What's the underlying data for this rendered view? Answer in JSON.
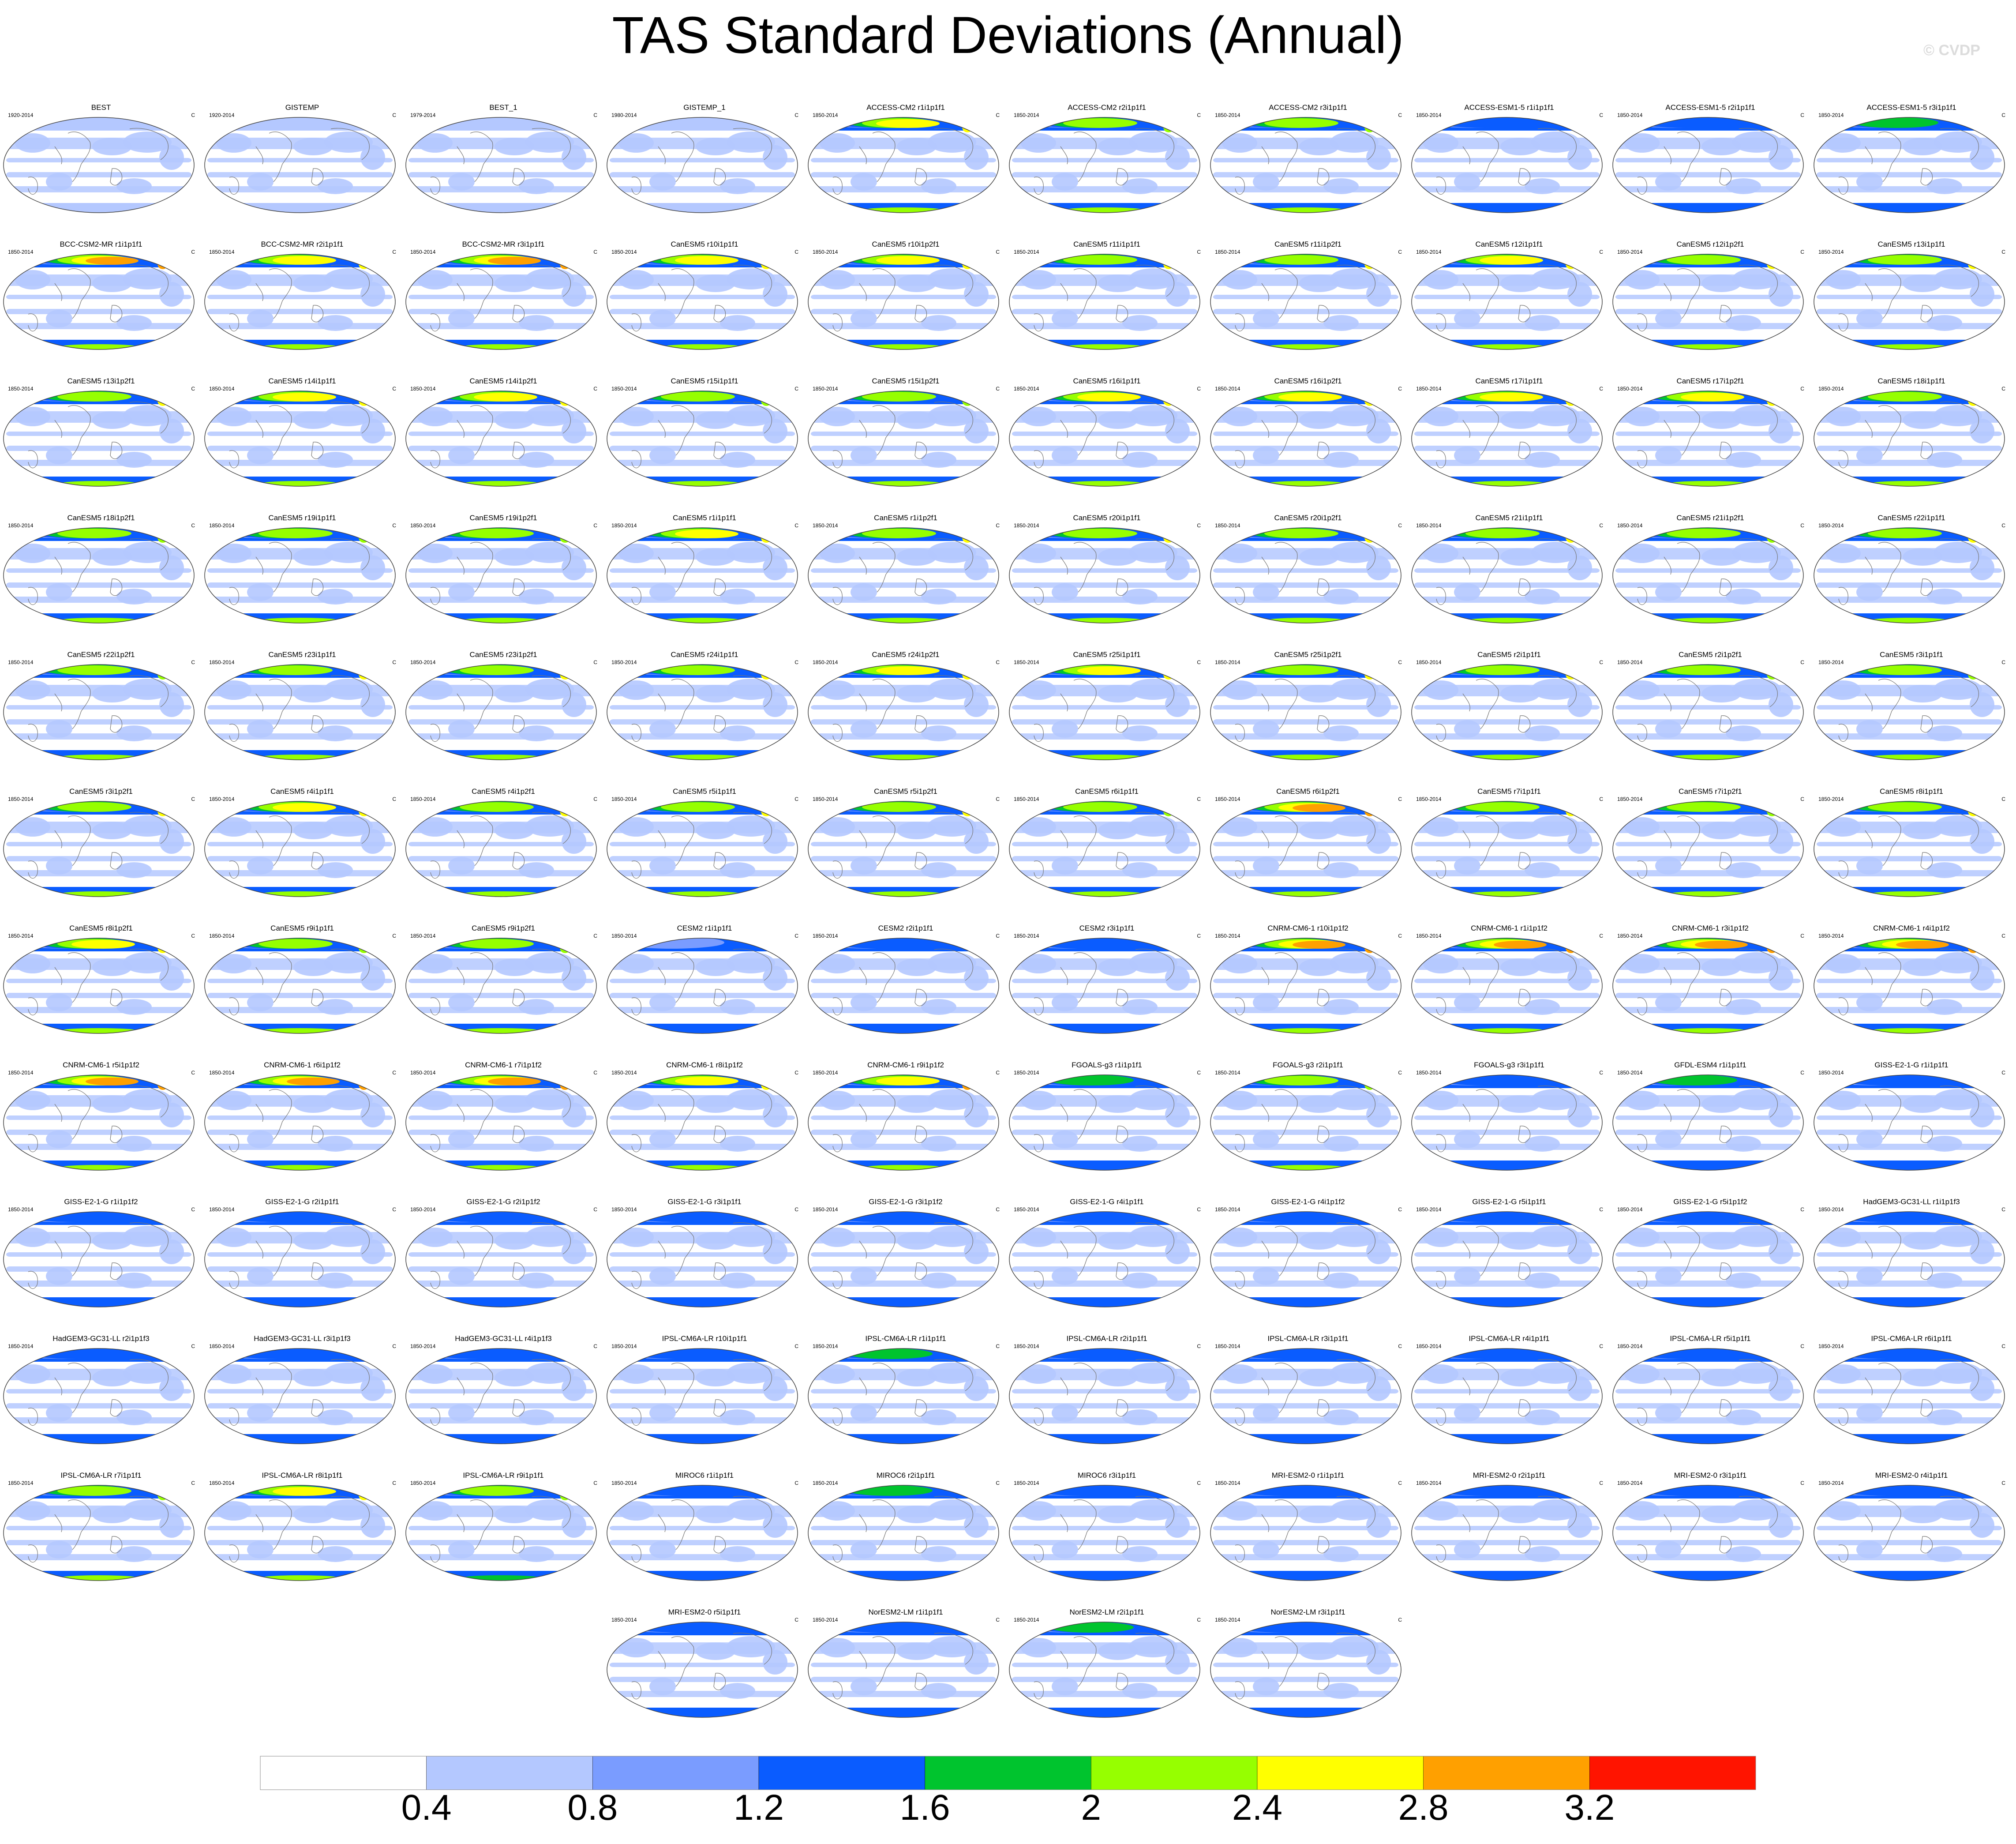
{
  "title": "TAS Standard Deviations (Annual)",
  "copyright": "© CVDP",
  "chart_data": {
    "type": "heatmap",
    "title": "TAS Standard Deviations (Annual)",
    "units": "C",
    "projection": "Robinson global map, Pacific-centered",
    "colorbar": {
      "boundaries": [
        0.4,
        0.8,
        1.2,
        1.6,
        2,
        2.4,
        2.8,
        3.2
      ],
      "tick_labels": [
        "0.4",
        "0.8",
        "1.2",
        "1.6",
        "2",
        "2.4",
        "2.8",
        "3.2"
      ],
      "colors": [
        "#ffffff",
        "#b4c8ff",
        "#7a9cff",
        "#0a5cff",
        "#00c42e",
        "#96ff00",
        "#ffff00",
        "#ffa000",
        "#ff1400"
      ]
    },
    "panels": [
      {
        "title": "BEST",
        "period": "1920-2014",
        "unit": "C",
        "level": 0.5
      },
      {
        "title": "GISTEMP",
        "period": "1920-2014",
        "unit": "C",
        "level": 0.5
      },
      {
        "title": "BEST_1",
        "period": "1979-2014",
        "unit": "C",
        "level": 0.5
      },
      {
        "title": "GISTEMP_1",
        "period": "1980-2014",
        "unit": "C",
        "level": 0.4
      },
      {
        "title": "ACCESS-CM2 r1i1p1f1",
        "period": "1850-2014",
        "unit": "C",
        "level": 2.6
      },
      {
        "title": "ACCESS-CM2 r2i1p1f1",
        "period": "1850-2014",
        "unit": "C",
        "level": 2.2
      },
      {
        "title": "ACCESS-CM2 r3i1p1f1",
        "period": "1850-2014",
        "unit": "C",
        "level": 2.3
      },
      {
        "title": "ACCESS-ESM1-5 r1i1p1f1",
        "period": "1850-2014",
        "unit": "C",
        "level": 1.6
      },
      {
        "title": "ACCESS-ESM1-5 r2i1p1f1",
        "period": "1850-2014",
        "unit": "C",
        "level": 1.6
      },
      {
        "title": "ACCESS-ESM1-5 r3i1p1f1",
        "period": "1850-2014",
        "unit": "C",
        "level": 1.7
      },
      {
        "title": "BCC-CSM2-MR r1i1p1f1",
        "period": "1850-2014",
        "unit": "C",
        "level": 2.9
      },
      {
        "title": "BCC-CSM2-MR r2i1p1f1",
        "period": "1850-2014",
        "unit": "C",
        "level": 2.6
      },
      {
        "title": "BCC-CSM2-MR r3i1p1f1",
        "period": "1850-2014",
        "unit": "C",
        "level": 3.0
      },
      {
        "title": "CanESM5 r10i1p1f1",
        "period": "1850-2014",
        "unit": "C",
        "level": 2.5
      },
      {
        "title": "CanESM5 r10i1p2f1",
        "period": "1850-2014",
        "unit": "C",
        "level": 2.7
      },
      {
        "title": "CanESM5 r11i1p1f1",
        "period": "1850-2014",
        "unit": "C",
        "level": 2.4
      },
      {
        "title": "CanESM5 r11i1p2f1",
        "period": "1850-2014",
        "unit": "C",
        "level": 2.4
      },
      {
        "title": "CanESM5 r12i1p1f1",
        "period": "1850-2014",
        "unit": "C",
        "level": 2.5
      },
      {
        "title": "CanESM5 r12i1p2f1",
        "period": "1850-2014",
        "unit": "C",
        "level": 2.4
      },
      {
        "title": "CanESM5 r13i1p1f1",
        "period": "1850-2014",
        "unit": "C",
        "level": 2.4
      },
      {
        "title": "CanESM5 r13i1p2f1",
        "period": "1850-2014",
        "unit": "C",
        "level": 2.4
      },
      {
        "title": "CanESM5 r14i1p1f1",
        "period": "1850-2014",
        "unit": "C",
        "level": 2.5
      },
      {
        "title": "CanESM5 r14i1p2f1",
        "period": "1850-2014",
        "unit": "C",
        "level": 2.5
      },
      {
        "title": "CanESM5 r15i1p1f1",
        "period": "1850-2014",
        "unit": "C",
        "level": 2.3
      },
      {
        "title": "CanESM5 r15i1p2f1",
        "period": "1850-2014",
        "unit": "C",
        "level": 2.3
      },
      {
        "title": "CanESM5 r16i1p1f1",
        "period": "1850-2014",
        "unit": "C",
        "level": 2.5
      },
      {
        "title": "CanESM5 r16i1p2f1",
        "period": "1850-2014",
        "unit": "C",
        "level": 2.5
      },
      {
        "title": "CanESM5 r17i1p1f1",
        "period": "1850-2014",
        "unit": "C",
        "level": 2.6
      },
      {
        "title": "CanESM5 r17i1p2f1",
        "period": "1850-2014",
        "unit": "C",
        "level": 2.5
      },
      {
        "title": "CanESM5 r18i1p1f1",
        "period": "1850-2014",
        "unit": "C",
        "level": 2.4
      },
      {
        "title": "CanESM5 r18i1p2f1",
        "period": "1850-2014",
        "unit": "C",
        "level": 2.3
      },
      {
        "title": "CanESM5 r19i1p1f1",
        "period": "1850-2014",
        "unit": "C",
        "level": 2.3
      },
      {
        "title": "CanESM5 r19i1p2f1",
        "period": "1850-2014",
        "unit": "C",
        "level": 2.3
      },
      {
        "title": "CanESM5 r1i1p1f1",
        "period": "1850-2014",
        "unit": "C",
        "level": 2.5
      },
      {
        "title": "CanESM5 r1i1p2f1",
        "period": "1850-2014",
        "unit": "C",
        "level": 2.4
      },
      {
        "title": "CanESM5 r20i1p1f1",
        "period": "1850-2014",
        "unit": "C",
        "level": 2.4
      },
      {
        "title": "CanESM5 r20i1p2f1",
        "period": "1850-2014",
        "unit": "C",
        "level": 2.4
      },
      {
        "title": "CanESM5 r21i1p1f1",
        "period": "1850-2014",
        "unit": "C",
        "level": 2.4
      },
      {
        "title": "CanESM5 r21i1p2f1",
        "period": "1850-2014",
        "unit": "C",
        "level": 2.3
      },
      {
        "title": "CanESM5 r22i1p1f1",
        "period": "1850-2014",
        "unit": "C",
        "level": 2.4
      },
      {
        "title": "CanESM5 r22i1p2f1",
        "period": "1850-2014",
        "unit": "C",
        "level": 2.3
      },
      {
        "title": "CanESM5 r23i1p1f1",
        "period": "1850-2014",
        "unit": "C",
        "level": 2.4
      },
      {
        "title": "CanESM5 r23i1p2f1",
        "period": "1850-2014",
        "unit": "C",
        "level": 2.4
      },
      {
        "title": "CanESM5 r24i1p1f1",
        "period": "1850-2014",
        "unit": "C",
        "level": 2.4
      },
      {
        "title": "CanESM5 r24i1p2f1",
        "period": "1850-2014",
        "unit": "C",
        "level": 2.5
      },
      {
        "title": "CanESM5 r25i1p1f1",
        "period": "1850-2014",
        "unit": "C",
        "level": 2.5
      },
      {
        "title": "CanESM5 r25i1p2f1",
        "period": "1850-2014",
        "unit": "C",
        "level": 2.4
      },
      {
        "title": "CanESM5 r2i1p1f1",
        "period": "1850-2014",
        "unit": "C",
        "level": 2.4
      },
      {
        "title": "CanESM5 r2i1p2f1",
        "period": "1850-2014",
        "unit": "C",
        "level": 2.3
      },
      {
        "title": "CanESM5 r3i1p1f1",
        "period": "1850-2014",
        "unit": "C",
        "level": 2.3
      },
      {
        "title": "CanESM5 r3i1p2f1",
        "period": "1850-2014",
        "unit": "C",
        "level": 2.4
      },
      {
        "title": "CanESM5 r4i1p1f1",
        "period": "1850-2014",
        "unit": "C",
        "level": 2.6
      },
      {
        "title": "CanESM5 r4i1p2f1",
        "period": "1850-2014",
        "unit": "C",
        "level": 2.4
      },
      {
        "title": "CanESM5 r5i1p1f1",
        "period": "1850-2014",
        "unit": "C",
        "level": 2.4
      },
      {
        "title": "CanESM5 r5i1p2f1",
        "period": "1850-2014",
        "unit": "C",
        "level": 2.4
      },
      {
        "title": "CanESM5 r6i1p1f1",
        "period": "1850-2014",
        "unit": "C",
        "level": 2.3
      },
      {
        "title": "CanESM5 r6i1p2f1",
        "period": "1850-2014",
        "unit": "C",
        "level": 3.0
      },
      {
        "title": "CanESM5 r7i1p1f1",
        "period": "1850-2014",
        "unit": "C",
        "level": 2.4
      },
      {
        "title": "CanESM5 r7i1p2f1",
        "period": "1850-2014",
        "unit": "C",
        "level": 2.3
      },
      {
        "title": "CanESM5 r8i1p1f1",
        "period": "1850-2014",
        "unit": "C",
        "level": 2.4
      },
      {
        "title": "CanESM5 r8i1p2f1",
        "period": "1850-2014",
        "unit": "C",
        "level": 2.5
      },
      {
        "title": "CanESM5 r9i1p1f1",
        "period": "1850-2014",
        "unit": "C",
        "level": 2.3
      },
      {
        "title": "CanESM5 r9i1p2f1",
        "period": "1850-2014",
        "unit": "C",
        "level": 2.3
      },
      {
        "title": "CESM2 r1i1p1f1",
        "period": "1850-2014",
        "unit": "C",
        "level": 1.2
      },
      {
        "title": "CESM2 r2i1p1f1",
        "period": "1850-2014",
        "unit": "C",
        "level": 1.3
      },
      {
        "title": "CESM2 r3i1p1f1",
        "period": "1850-2014",
        "unit": "C",
        "level": 1.3
      },
      {
        "title": "CNRM-CM6-1 r10i1p1f2",
        "period": "1850-2014",
        "unit": "C",
        "level": 3.0
      },
      {
        "title": "CNRM-CM6-1 r1i1p1f2",
        "period": "1850-2014",
        "unit": "C",
        "level": 3.0
      },
      {
        "title": "CNRM-CM6-1 r3i1p1f2",
        "period": "1850-2014",
        "unit": "C",
        "level": 3.0
      },
      {
        "title": "CNRM-CM6-1 r4i1p1f2",
        "period": "1850-2014",
        "unit": "C",
        "level": 3.1
      },
      {
        "title": "CNRM-CM6-1 r5i1p1f2",
        "period": "1850-2014",
        "unit": "C",
        "level": 2.9
      },
      {
        "title": "CNRM-CM6-1 r6i1p1f2",
        "period": "1850-2014",
        "unit": "C",
        "level": 2.9
      },
      {
        "title": "CNRM-CM6-1 r7i1p1f2",
        "period": "1850-2014",
        "unit": "C",
        "level": 2.9
      },
      {
        "title": "CNRM-CM6-1 r8i1p1f2",
        "period": "1850-2014",
        "unit": "C",
        "level": 2.5
      },
      {
        "title": "CNRM-CM6-1 r9i1p1f2",
        "period": "1850-2014",
        "unit": "C",
        "level": 2.8
      },
      {
        "title": "FGOALS-g3 r1i1p1f1",
        "period": "1850-2014",
        "unit": "C",
        "level": 1.7
      },
      {
        "title": "FGOALS-g3 r2i1p1f1",
        "period": "1850-2014",
        "unit": "C",
        "level": 2.2
      },
      {
        "title": "FGOALS-g3 r3i1p1f1",
        "period": "1850-2014",
        "unit": "C",
        "level": 1.6
      },
      {
        "title": "GFDL-ESM4 r1i1p1f1",
        "period": "1850-2014",
        "unit": "C",
        "level": 1.7
      },
      {
        "title": "GISS-E2-1-G r1i1p1f1",
        "period": "1850-2014",
        "unit": "C",
        "level": 1.6
      },
      {
        "title": "GISS-E2-1-G r1i1p1f2",
        "period": "1850-2014",
        "unit": "C",
        "level": 1.4
      },
      {
        "title": "GISS-E2-1-G r2i1p1f1",
        "period": "1850-2014",
        "unit": "C",
        "level": 1.4
      },
      {
        "title": "GISS-E2-1-G r2i1p1f2",
        "period": "1850-2014",
        "unit": "C",
        "level": 1.5
      },
      {
        "title": "GISS-E2-1-G r3i1p1f1",
        "period": "1850-2014",
        "unit": "C",
        "level": 1.4
      },
      {
        "title": "GISS-E2-1-G r3i1p1f2",
        "period": "1850-2014",
        "unit": "C",
        "level": 1.4
      },
      {
        "title": "GISS-E2-1-G r4i1p1f1",
        "period": "1850-2014",
        "unit": "C",
        "level": 1.4
      },
      {
        "title": "GISS-E2-1-G r4i1p1f2",
        "period": "1850-2014",
        "unit": "C",
        "level": 1.4
      },
      {
        "title": "GISS-E2-1-G r5i1p1f1",
        "period": "1850-2014",
        "unit": "C",
        "level": 1.4
      },
      {
        "title": "GISS-E2-1-G r5i1p1f2",
        "period": "1850-2014",
        "unit": "C",
        "level": 1.4
      },
      {
        "title": "HadGEM3-GC31-LL r1i1p1f3",
        "period": "1850-2014",
        "unit": "C",
        "level": 1.5
      },
      {
        "title": "HadGEM3-GC31-LL r2i1p1f3",
        "period": "1850-2014",
        "unit": "C",
        "level": 1.5
      },
      {
        "title": "HadGEM3-GC31-LL r3i1p1f3",
        "period": "1850-2014",
        "unit": "C",
        "level": 1.4
      },
      {
        "title": "HadGEM3-GC31-LL r4i1p1f3",
        "period": "1850-2014",
        "unit": "C",
        "level": 1.5
      },
      {
        "title": "IPSL-CM6A-LR r10i1p1f1",
        "period": "1850-2014",
        "unit": "C",
        "level": 1.4
      },
      {
        "title": "IPSL-CM6A-LR r1i1p1f1",
        "period": "1850-2014",
        "unit": "C",
        "level": 1.7
      },
      {
        "title": "IPSL-CM6A-LR r2i1p1f1",
        "period": "1850-2014",
        "unit": "C",
        "level": 1.5
      },
      {
        "title": "IPSL-CM6A-LR r3i1p1f1",
        "period": "1850-2014",
        "unit": "C",
        "level": 1.4
      },
      {
        "title": "IPSL-CM6A-LR r4i1p1f1",
        "period": "1850-2014",
        "unit": "C",
        "level": 1.4
      },
      {
        "title": "IPSL-CM6A-LR r5i1p1f1",
        "period": "1850-2014",
        "unit": "C",
        "level": 1.4
      },
      {
        "title": "IPSL-CM6A-LR r6i1p1f1",
        "period": "1850-2014",
        "unit": "C",
        "level": 1.5
      },
      {
        "title": "IPSL-CM6A-LR r7i1p1f1",
        "period": "1850-2014",
        "unit": "C",
        "level": 2.3
      },
      {
        "title": "IPSL-CM6A-LR r8i1p1f1",
        "period": "1850-2014",
        "unit": "C",
        "level": 2.6
      },
      {
        "title": "IPSL-CM6A-LR r9i1p1f1",
        "period": "1850-2014",
        "unit": "C",
        "level": 2.1
      },
      {
        "title": "MIROC6 r1i1p1f1",
        "period": "1850-2014",
        "unit": "C",
        "level": 1.3
      },
      {
        "title": "MIROC6 r2i1p1f1",
        "period": "1850-2014",
        "unit": "C",
        "level": 1.7
      },
      {
        "title": "MIROC6 r3i1p1f1",
        "period": "1850-2014",
        "unit": "C",
        "level": 1.3
      },
      {
        "title": "MRI-ESM2-0 r1i1p1f1",
        "period": "1850-2014",
        "unit": "C",
        "level": 1.4
      },
      {
        "title": "MRI-ESM2-0 r2i1p1f1",
        "period": "1850-2014",
        "unit": "C",
        "level": 1.5
      },
      {
        "title": "MRI-ESM2-0 r3i1p1f1",
        "period": "1850-2014",
        "unit": "C",
        "level": 1.5
      },
      {
        "title": "MRI-ESM2-0 r4i1p1f1",
        "period": "1850-2014",
        "unit": "C",
        "level": 1.5
      },
      {
        "title": "MRI-ESM2-0 r5i1p1f1",
        "period": "1850-2014",
        "unit": "C",
        "level": 1.5
      },
      {
        "title": "NorESM2-LM r1i1p1f1",
        "period": "1850-2014",
        "unit": "C",
        "level": 1.6
      },
      {
        "title": "NorESM2-LM r2i1p1f1",
        "period": "1850-2014",
        "unit": "C",
        "level": 1.7
      },
      {
        "title": "NorESM2-LM r3i1p1f1",
        "period": "1850-2014",
        "unit": "C",
        "level": 1.6
      }
    ]
  }
}
